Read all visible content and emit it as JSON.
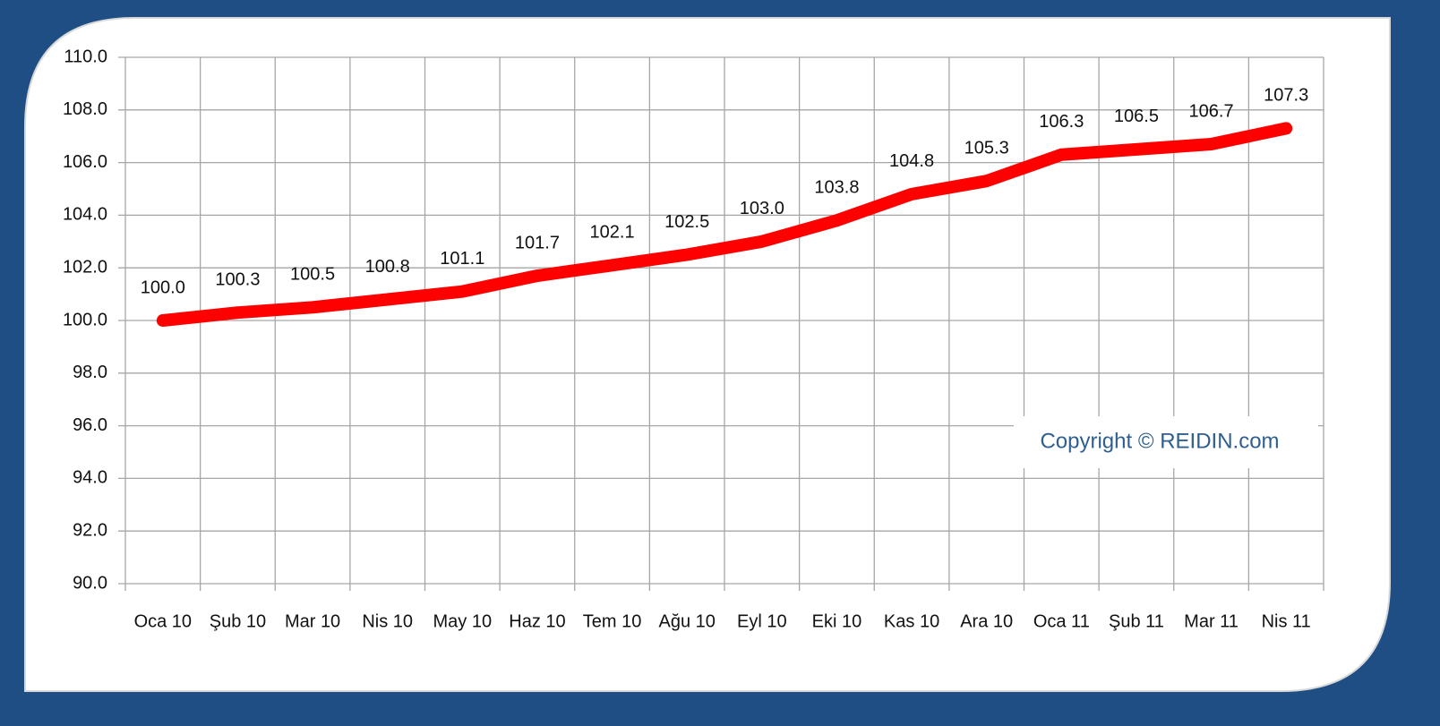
{
  "chart_data": {
    "type": "line",
    "categories": [
      "Oca 10",
      "Şub 10",
      "Mar 10",
      "Nis 10",
      "May 10",
      "Haz 10",
      "Tem 10",
      "Ağu 10",
      "Eyl 10",
      "Eki 10",
      "Kas 10",
      "Ara 10",
      "Oca 11",
      "Şub 11",
      "Mar 11",
      "Nis 11"
    ],
    "values": [
      100.0,
      100.3,
      100.5,
      100.8,
      101.1,
      101.7,
      102.1,
      102.5,
      103.0,
      103.8,
      104.8,
      105.3,
      106.3,
      106.5,
      106.7,
      107.3
    ],
    "value_labels": [
      "100.0",
      "100.3",
      "100.5",
      "100.8",
      "101.1",
      "101.7",
      "102.1",
      "102.5",
      "103.0",
      "103.8",
      "104.8",
      "105.3",
      "106.3",
      "106.5",
      "106.7",
      "107.3"
    ],
    "color": "#ff0000",
    "ylim": [
      90,
      110
    ],
    "yticks": [
      {
        "value": 90,
        "label": "90.0"
      },
      {
        "value": 92,
        "label": "92.0"
      },
      {
        "value": 94,
        "label": "94.0"
      },
      {
        "value": 96,
        "label": "96.0"
      },
      {
        "value": 98,
        "label": "98.0"
      },
      {
        "value": 100,
        "label": "100.0"
      },
      {
        "value": 102,
        "label": "102.0"
      },
      {
        "value": 104,
        "label": "104.0"
      },
      {
        "value": 106,
        "label": "106.0"
      },
      {
        "value": 108,
        "label": "108.0"
      },
      {
        "value": 110,
        "label": "110.0"
      }
    ],
    "grid": true,
    "annotation": "Copyright © REIDIN.com"
  }
}
